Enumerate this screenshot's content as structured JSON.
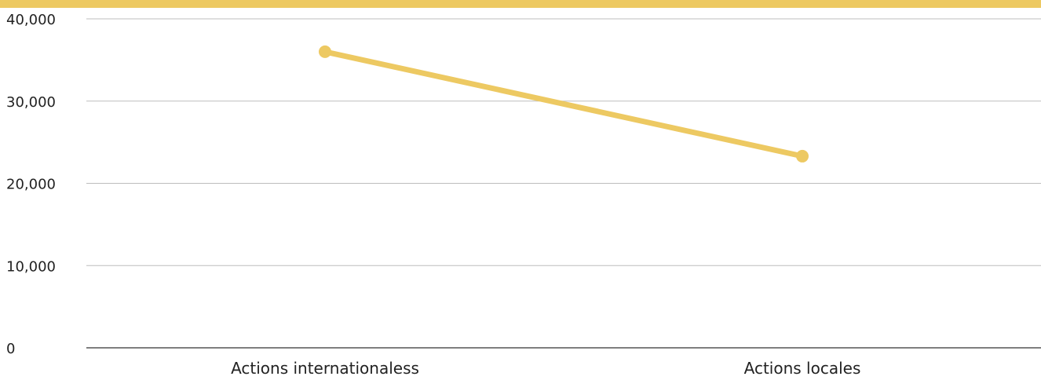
{
  "colors": {
    "accent": "#EDC962",
    "grid": "#BDBDBD",
    "axis": "#555555",
    "text": "#222222",
    "background": "#FFFFFF"
  },
  "chart_data": {
    "type": "line",
    "title": "",
    "xlabel": "",
    "ylabel": "",
    "categories": [
      "Actions internationaless",
      "Actions locales"
    ],
    "series": [
      {
        "values": [
          36000,
          23300
        ]
      }
    ],
    "ylim": [
      0,
      40000
    ],
    "yticks": [
      0,
      10000,
      20000,
      30000,
      40000
    ],
    "ytick_labels": [
      "0",
      "10,000",
      "20,000",
      "30,000",
      "40,000"
    ],
    "grid": true,
    "legend": "none"
  }
}
